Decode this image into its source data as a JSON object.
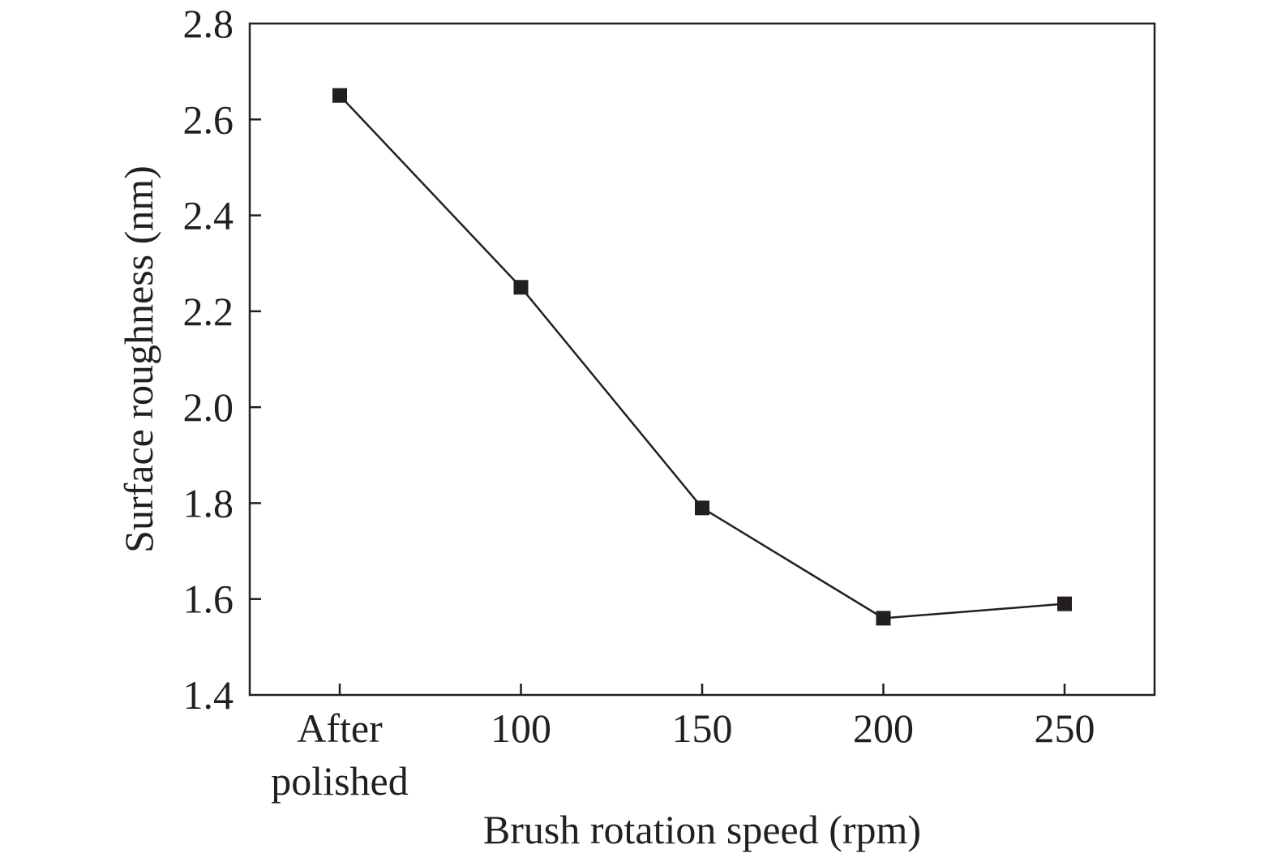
{
  "chart_data": {
    "type": "line",
    "title": "",
    "xlabel": "Brush rotation speed (rpm)",
    "ylabel": "Surface roughness (nm)",
    "categories": [
      [
        "After",
        "polished"
      ],
      [
        "100"
      ],
      [
        "150"
      ],
      [
        "200"
      ],
      [
        "250"
      ]
    ],
    "series": [
      {
        "values": [
          2.65,
          2.25,
          1.79,
          1.56,
          1.59
        ],
        "marker": "square",
        "color": "#231f20"
      }
    ],
    "ylim": [
      1.4,
      2.8
    ],
    "yticks": [
      "1.4",
      "1.6",
      "1.8",
      "2.0",
      "2.2",
      "2.4",
      "2.6",
      "2.8"
    ],
    "grid": false,
    "legend": "none"
  }
}
